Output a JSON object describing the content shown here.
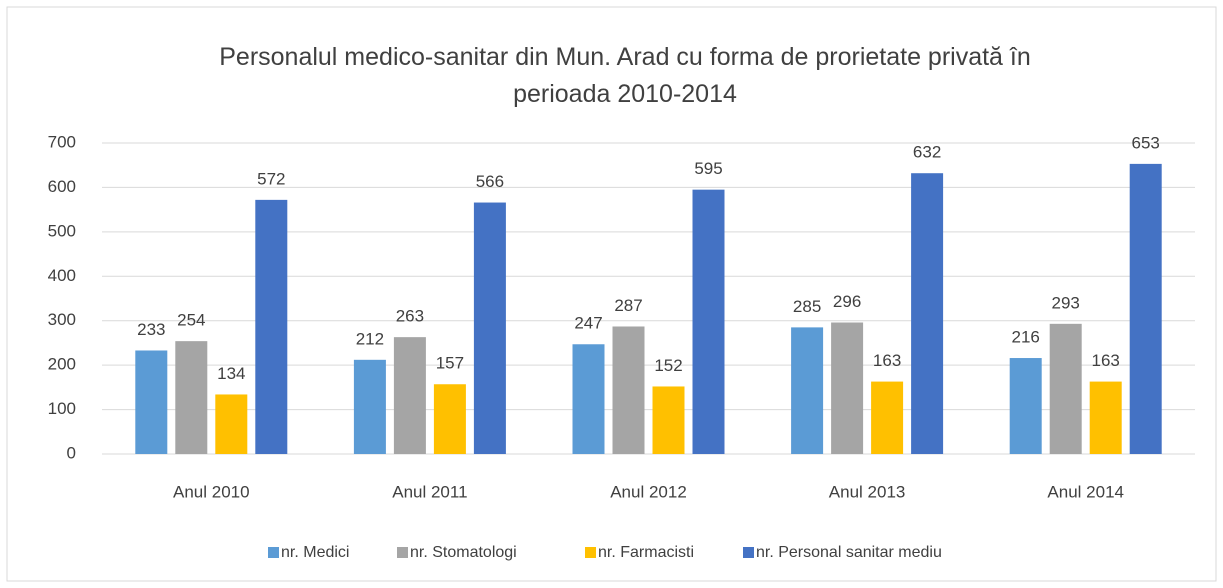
{
  "chart_data": {
    "type": "bar",
    "title": "Personalul medico-sanitar din Mun. Arad cu forma de prorietate privată în perioada 2010-2014",
    "categories": [
      "Anul 2010",
      "Anul 2011",
      "Anul 2012",
      "Anul 2013",
      "Anul 2014"
    ],
    "series": [
      {
        "name": "nr. Medici",
        "color": "#5b9bd5",
        "values": [
          233,
          212,
          247,
          285,
          216
        ]
      },
      {
        "name": "nr. Stomatologi",
        "color": "#a5a5a5",
        "values": [
          254,
          263,
          287,
          296,
          293
        ]
      },
      {
        "name": "nr. Farmacisti",
        "color": "#ffc000",
        "values": [
          134,
          157,
          152,
          163,
          163
        ]
      },
      {
        "name": "nr. Personal sanitar mediu",
        "color": "#4472c4",
        "values": [
          572,
          566,
          595,
          632,
          653
        ]
      }
    ],
    "ylim": [
      0,
      700
    ],
    "yticks": [
      0,
      100,
      200,
      300,
      400,
      500,
      600,
      700
    ],
    "grid": true,
    "legend": "bottom"
  }
}
